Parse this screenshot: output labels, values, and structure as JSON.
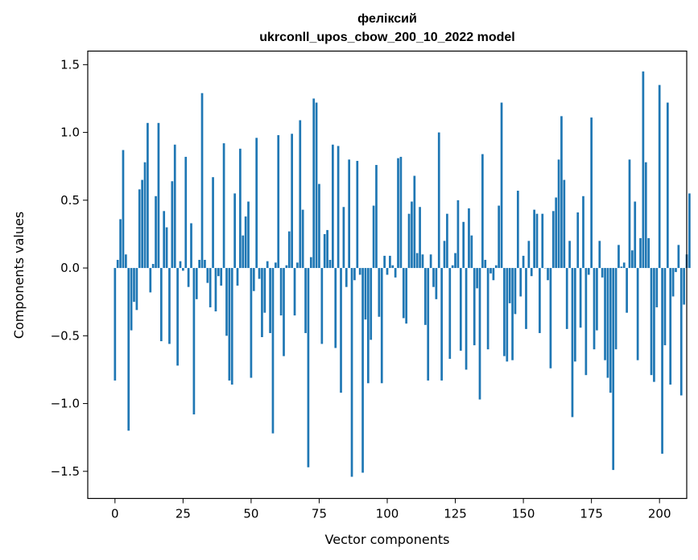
{
  "chart_data": {
    "type": "bar",
    "title": "феліксий",
    "subtitle": "ukrconll_upos_cbow_200_10_2022 model",
    "xlabel": "Vector components",
    "ylabel": "Components values",
    "xlim": [
      -10,
      210
    ],
    "ylim": [
      -1.7,
      1.6
    ],
    "xticks": [
      0,
      25,
      50,
      75,
      100,
      125,
      150,
      175,
      200
    ],
    "xtick_labels": [
      "0",
      "25",
      "50",
      "75",
      "100",
      "125",
      "150",
      "175",
      "200"
    ],
    "yticks": [
      -1.5,
      -1.0,
      -0.5,
      0.0,
      0.5,
      1.0,
      1.5
    ],
    "ytick_labels": [
      "−1.5",
      "−1.0",
      "−0.5",
      "0.0",
      "0.5",
      "1.0",
      "1.5"
    ],
    "grid": false,
    "bar_color": "#1f77b4",
    "values": [
      -0.83,
      0.06,
      0.36,
      0.87,
      0.1,
      -1.2,
      -0.46,
      -0.25,
      -0.31,
      0.58,
      0.65,
      0.78,
      1.07,
      -0.18,
      0.03,
      0.53,
      1.07,
      -0.54,
      0.42,
      0.3,
      -0.56,
      0.64,
      0.91,
      -0.72,
      0.05,
      -0.02,
      0.82,
      -0.14,
      0.33,
      -1.08,
      -0.23,
      0.06,
      1.29,
      0.06,
      -0.11,
      -0.29,
      0.67,
      -0.32,
      -0.06,
      -0.13,
      0.92,
      -0.5,
      -0.83,
      -0.86,
      0.55,
      -0.13,
      0.88,
      0.24,
      0.38,
      0.49,
      -0.81,
      -0.17,
      0.96,
      -0.08,
      -0.51,
      -0.33,
      0.05,
      -0.48,
      -1.22,
      0.04,
      0.98,
      -0.35,
      -0.65,
      0.02,
      0.27,
      0.99,
      -0.35,
      0.04,
      1.09,
      0.43,
      -0.48,
      -1.47,
      0.08,
      1.25,
      1.22,
      0.62,
      -0.56,
      0.25,
      0.28,
      0.06,
      0.91,
      -0.59,
      0.9,
      -0.92,
      0.45,
      -0.14,
      0.8,
      -1.54,
      -0.09,
      0.79,
      -0.05,
      -1.51,
      -0.38,
      -0.85,
      -0.53,
      0.46,
      0.76,
      -0.36,
      -0.85,
      0.09,
      -0.05,
      0.09,
      0.02,
      -0.07,
      0.81,
      0.82,
      -0.37,
      -0.41,
      0.4,
      0.49,
      0.68,
      0.11,
      0.45,
      0.1,
      -0.42,
      -0.83,
      0.1,
      -0.14,
      -0.23,
      1.0,
      -0.83,
      0.2,
      0.4,
      -0.67,
      0.02,
      0.11,
      0.5,
      -0.61,
      0.34,
      -0.75,
      0.44,
      0.24,
      -0.57,
      -0.15,
      -0.97,
      0.84,
      0.06,
      -0.6,
      -0.04,
      -0.09,
      0.02,
      0.46,
      1.22,
      -0.65,
      -0.69,
      -0.26,
      -0.68,
      -0.34,
      0.57,
      -0.21,
      0.09,
      -0.45,
      0.2,
      -0.06,
      0.43,
      0.4,
      -0.48,
      0.4,
      0.0,
      -0.09,
      -0.74,
      0.42,
      0.52,
      0.8,
      1.12,
      0.65,
      -0.45,
      0.2,
      -1.1,
      -0.69,
      0.41,
      -0.44,
      0.53,
      -0.79,
      -0.05,
      1.11,
      -0.6,
      -0.46,
      0.2,
      -0.07,
      -0.68,
      -0.81,
      -0.92,
      -1.49,
      -0.6,
      0.17,
      0.01,
      0.04,
      -0.33,
      0.8,
      0.13,
      0.49,
      -0.68,
      0.22,
      1.45,
      0.78,
      0.22,
      -0.79,
      -0.84,
      -0.29,
      1.35,
      -1.37,
      -0.57,
      1.22,
      -0.86,
      -0.21,
      -0.03,
      0.17,
      -0.94,
      -0.27,
      0.1,
      0.55
    ]
  }
}
